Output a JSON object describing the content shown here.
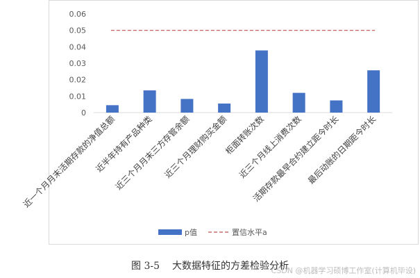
{
  "chart_data": {
    "type": "bar",
    "categories": [
      "近一个月月末活期存款的净值总额",
      "近半年持有产品种类",
      "近三个月月末三方存管余额",
      "近三个月理财购买金额",
      "柜面转账次数",
      "近三个月线上消费次数",
      "活期存款最早合约建立距今时长",
      "最后动账的日期距今时长"
    ],
    "series": [
      {
        "name": "p值",
        "values": [
          0.0045,
          0.0135,
          0.0083,
          0.0055,
          0.0378,
          0.012,
          0.0074,
          0.0257
        ],
        "color": "#4472c4"
      }
    ],
    "reference_line": {
      "name": "置信水平a",
      "value": 0.05,
      "color": "#c0504d",
      "style": "dashed"
    },
    "y_ticks": [
      "0",
      "0.01",
      "0.02",
      "0.03",
      "0.04",
      "0.05",
      "0.06"
    ],
    "ylim": [
      0,
      0.06
    ],
    "grid": false,
    "legend_position": "bottom"
  },
  "caption": {
    "label": "图 3-5",
    "text": "大数据特征的方差检验分析"
  },
  "watermark": "CSDN @机器学习硕博工作室(计算机毕设)"
}
